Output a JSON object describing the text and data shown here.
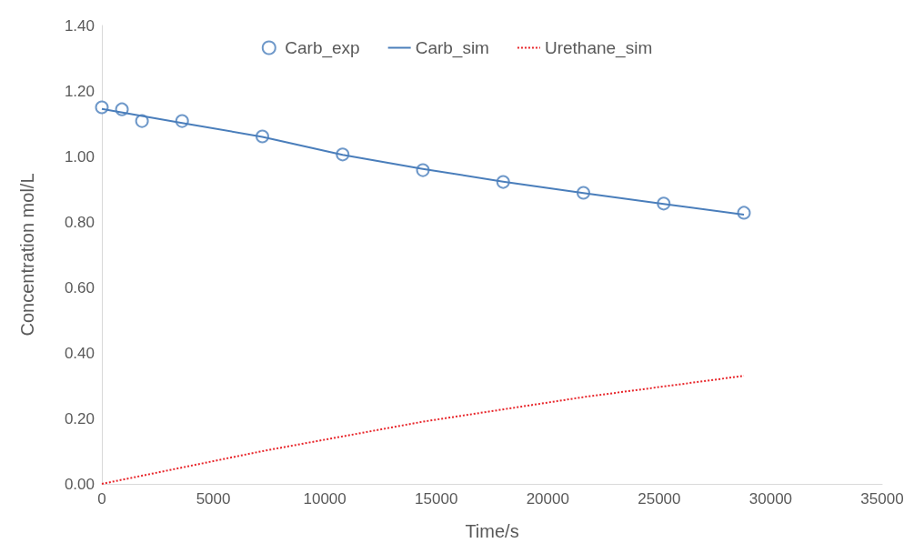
{
  "chart_data": {
    "type": "line",
    "xlabel": "Time/s",
    "ylabel": "Concentration mol/L",
    "xlim": [
      0,
      35000
    ],
    "xticks": [
      0,
      5000,
      10000,
      15000,
      20000,
      25000,
      30000,
      35000
    ],
    "ylim": [
      0,
      1.4
    ],
    "yticks": [
      {
        "value": 0,
        "label": "0.00"
      },
      {
        "value": 0.2,
        "label": "0.20"
      },
      {
        "value": 0.4,
        "label": "0.40"
      },
      {
        "value": 0.6,
        "label": "0.60"
      },
      {
        "value": 0.8,
        "label": "0.80"
      },
      {
        "value": 1.0,
        "label": "1.00"
      },
      {
        "value": 1.2,
        "label": "1.20"
      },
      {
        "value": 1.4,
        "label": "1.40"
      }
    ],
    "grid": false,
    "legend": "top",
    "series": [
      {
        "name": "Carb_exp",
        "type": "scatter",
        "marker": "circle",
        "color": "#4a7ebb",
        "x": [
          0,
          900,
          1800,
          3600,
          7200,
          10800,
          14400,
          18000,
          21600,
          25200,
          28800
        ],
        "values": [
          1.15,
          1.144,
          1.108,
          1.108,
          1.061,
          1.006,
          0.958,
          0.922,
          0.889,
          0.856,
          0.828
        ]
      },
      {
        "name": "Carb_sim",
        "marker": "none",
        "line_style": "solid",
        "color": "#4a7ebb",
        "x": [
          0,
          3600,
          7200,
          10800,
          14400,
          18000,
          21600,
          25200,
          28800
        ],
        "values": [
          1.145,
          1.102,
          1.06,
          1.005,
          0.962,
          0.923,
          0.888,
          0.855,
          0.822
        ]
      },
      {
        "name": "Urethane_sim",
        "marker": "none",
        "line_style": "dotted",
        "color": "#e8262b",
        "x": [
          0,
          7200,
          14400,
          21600,
          28800
        ],
        "values": [
          0,
          0.1,
          0.19,
          0.265,
          0.33
        ]
      }
    ]
  }
}
